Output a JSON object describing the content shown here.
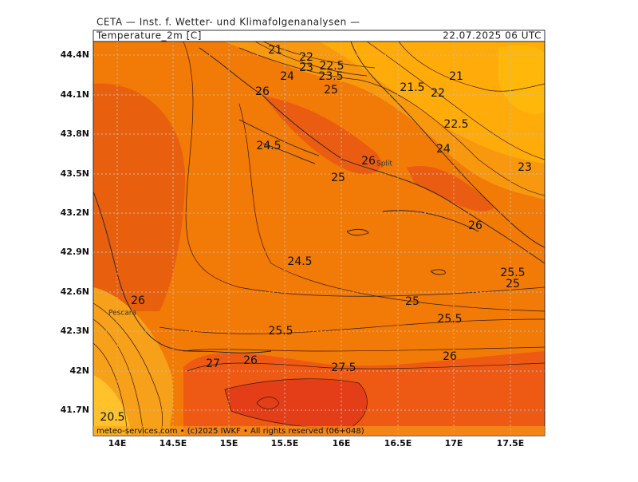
{
  "header": {
    "institute": "CETA — Inst. f. Wetter- und Klimafolgenanalysen —",
    "variable": "Temperature_2m [C]",
    "valid_time": "22.07.2025 06 UTC"
  },
  "map": {
    "lat_labels": [
      "44.4N",
      "44.1N",
      "43.8N",
      "43.5N",
      "43.2N",
      "42.9N",
      "42.6N",
      "42.3N",
      "42N",
      "41.7N"
    ],
    "lon_labels": [
      "14E",
      "14.5E",
      "15E",
      "15.5E",
      "16E",
      "16.5E",
      "17E",
      "17.5E"
    ],
    "contour_labels": [
      "21",
      "22",
      "23",
      "22.5",
      "24",
      "23.5",
      "25",
      "21.5",
      "21",
      "22",
      "26",
      "22.5",
      "24.5",
      "24",
      "26",
      "23",
      "25",
      "26",
      "24.5",
      "25.5",
      "25",
      "26",
      "25",
      "25.5",
      "25.5",
      "26",
      "26",
      "27",
      "27.5",
      "20.5"
    ],
    "places": [
      "Split",
      "Pescara"
    ]
  },
  "footer": "meteo-services.com • (c)2025 IWKF • All rights reserved (06+048)"
}
